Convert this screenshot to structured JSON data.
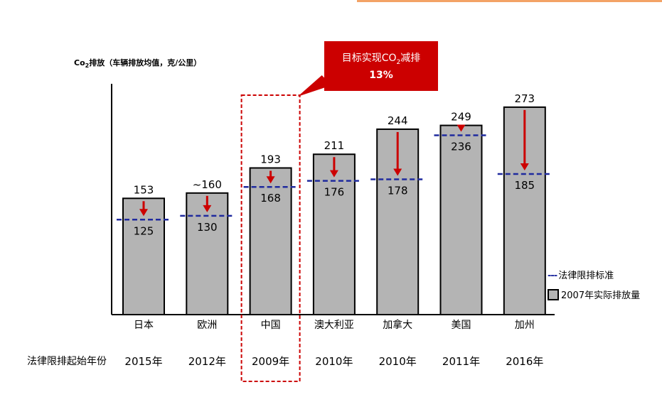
{
  "chart_data": {
    "type": "bar",
    "ylabel_prefix": "Co",
    "ylabel_sub": "2",
    "ylabel_suffix": "排放（车辆排放均值，克/公里）",
    "categories": [
      "日本",
      "欧洲",
      "中国",
      "澳大利亚",
      "加拿大",
      "美国",
      "加州"
    ],
    "series": [
      {
        "name": "2007年实际排放量",
        "values": [
          153,
          160,
          193,
          211,
          244,
          249,
          273
        ],
        "labels": [
          "153",
          "~160",
          "193",
          "211",
          "244",
          "249",
          "273"
        ]
      },
      {
        "name": "法律限排标准",
        "values": [
          125,
          130,
          168,
          176,
          178,
          236,
          185
        ],
        "labels": [
          "125",
          "130",
          "168",
          "176",
          "178",
          "236",
          "185"
        ]
      }
    ],
    "start_years": [
      "2015年",
      "2012年",
      "2009年",
      "2010年",
      "2010年",
      "2011年",
      "2016年"
    ],
    "start_years_label": "法律限排起始年份",
    "highlight_category": "中国",
    "callout": {
      "line1_prefix": "目标实现CO",
      "line1_sub": "2",
      "line1_suffix": "减排",
      "line2": "13%"
    },
    "legend_placement": "bottom-right",
    "grid": false,
    "colors": {
      "bar": "#b4b4b4",
      "bar_border": "#000000",
      "limit_line": "#1f2a9e",
      "arrow": "#cc0000",
      "highlight": "#cc0000"
    }
  }
}
